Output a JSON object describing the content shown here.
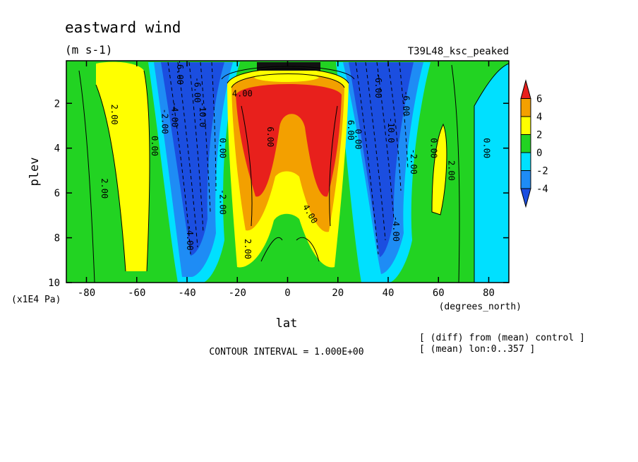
{
  "chart_data": {
    "type": "contour",
    "title": "eastward wind",
    "units": "(m s-1)",
    "run_label": "T39L48_ksc_peaked",
    "xlabel": "lat",
    "x_units": "(degrees_north)",
    "ylabel": "plev",
    "y_units": "(x1E4 Pa)",
    "xlim": [
      -88,
      88
    ],
    "ylim": [
      10,
      0.1
    ],
    "x_ticks": [
      {
        "value": -80,
        "label": "-80"
      },
      {
        "value": -60,
        "label": "-60"
      },
      {
        "value": -40,
        "label": "-40"
      },
      {
        "value": -20,
        "label": "-20"
      },
      {
        "value": 0,
        "label": "0"
      },
      {
        "value": 20,
        "label": "20"
      },
      {
        "value": 40,
        "label": "40"
      },
      {
        "value": 60,
        "label": "60"
      },
      {
        "value": 80,
        "label": "80"
      }
    ],
    "y_ticks": [
      {
        "value": 2,
        "label": "2"
      },
      {
        "value": 4,
        "label": "4"
      },
      {
        "value": 6,
        "label": "6"
      },
      {
        "value": 8,
        "label": "8"
      },
      {
        "value": 10,
        "label": "10"
      }
    ],
    "contour_interval_text": "CONTOUR INTERVAL = 1.000E+00",
    "notes": [
      "[ (diff) from (mean) control ]",
      "[ (mean) lon:0..357 ]"
    ],
    "colorbar": {
      "labels": [
        "6",
        "4",
        "2",
        "0",
        "-2",
        "-4"
      ],
      "bands": [
        {
          "min": 6,
          "color": "#e8201c"
        },
        {
          "min": 4,
          "max": 6,
          "color": "#f3a000"
        },
        {
          "min": 2,
          "max": 4,
          "color": "#ffff00"
        },
        {
          "min": 0,
          "max": 2,
          "color": "#22d322"
        },
        {
          "min": -2,
          "max": 0,
          "color": "#00e0ff"
        },
        {
          "min": -4,
          "max": -2,
          "color": "#1e8cf5"
        },
        {
          "max": -4,
          "color": "#1b4ee0"
        }
      ]
    },
    "contour_labels": [
      {
        "text": "2.00",
        "lat": -70,
        "plev": 2.5,
        "rotate": 90
      },
      {
        "text": "2.00",
        "lat": -74,
        "plev": 5.8,
        "rotate": 90
      },
      {
        "text": "-2.00",
        "lat": -50,
        "plev": 2.8,
        "rotate": 90
      },
      {
        "text": "0.00",
        "lat": -54,
        "plev": 3.9,
        "rotate": 90
      },
      {
        "text": "-4.00",
        "lat": -46,
        "plev": 2.5,
        "rotate": 90
      },
      {
        "text": "-6.00",
        "lat": -44,
        "plev": 0.6,
        "rotate": 90
      },
      {
        "text": "-10.0",
        "lat": -35,
        "plev": 2.5,
        "rotate": 90
      },
      {
        "text": "-6.00",
        "lat": -37,
        "plev": 1.4,
        "rotate": 90
      },
      {
        "text": "-4.00",
        "lat": -40,
        "plev": 8.0,
        "rotate": 90
      },
      {
        "text": "-2.00",
        "lat": -27,
        "plev": 6.4,
        "rotate": 90
      },
      {
        "text": "0.00",
        "lat": -27,
        "plev": 4.0,
        "rotate": 90
      },
      {
        "text": "4.00",
        "lat": -18,
        "plev": 1.7,
        "rotate": 0
      },
      {
        "text": "6.00",
        "lat": -8,
        "plev": 3.5,
        "rotate": 90
      },
      {
        "text": "2.00",
        "lat": -17,
        "plev": 8.5,
        "rotate": 90
      },
      {
        "text": "4.00",
        "lat": 8,
        "plev": 7.0,
        "rotate": 60
      },
      {
        "text": "6.00",
        "lat": 24,
        "plev": 3.2,
        "rotate": 90
      },
      {
        "text": "0.00",
        "lat": 27,
        "plev": 3.6,
        "rotate": 90
      },
      {
        "text": "-6.00",
        "lat": 35,
        "plev": 1.2,
        "rotate": 90
      },
      {
        "text": "-10.0",
        "lat": 40,
        "plev": 3.2,
        "rotate": 90
      },
      {
        "text": "-6.00",
        "lat": 46,
        "plev": 2.0,
        "rotate": 90
      },
      {
        "text": "-2.00",
        "lat": 49,
        "plev": 4.6,
        "rotate": 90
      },
      {
        "text": "-4.00",
        "lat": 42,
        "plev": 7.6,
        "rotate": 90
      },
      {
        "text": "0.00",
        "lat": 57,
        "plev": 4.0,
        "rotate": 90
      },
      {
        "text": "2.00",
        "lat": 64,
        "plev": 5.0,
        "rotate": 90
      },
      {
        "text": "0.00",
        "lat": 78,
        "plev": 4.0,
        "rotate": 90
      }
    ]
  }
}
